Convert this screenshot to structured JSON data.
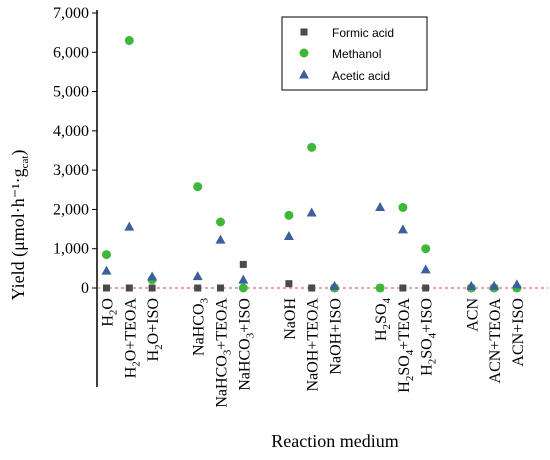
{
  "chart_data": {
    "type": "scatter",
    "ylabel": "Yield (μmol·h⁻¹·g",
    "ylabel_sub": "cat",
    "ylabel_tail": ")",
    "xlabel": "Reaction medium",
    "ylim": [
      0,
      7000
    ],
    "yticks": [
      0,
      1000,
      2000,
      3000,
      4000,
      5000,
      6000,
      7000
    ],
    "ytick_labels": [
      "0",
      "1,000",
      "2,000",
      "3,000",
      "4,000",
      "5,000",
      "6,000",
      "7,000"
    ],
    "grid": false,
    "legend_position": "top-center",
    "zero_line_color": "#e0483c",
    "categories": [
      {
        "pos": 1,
        "parts": [
          [
            "H",
            ""
          ],
          [
            "2",
            "sub"
          ],
          [
            "O",
            ""
          ]
        ]
      },
      {
        "pos": 2,
        "parts": [
          [
            "H",
            ""
          ],
          [
            "2",
            "sub"
          ],
          [
            "O+TEOA",
            ""
          ]
        ]
      },
      {
        "pos": 3,
        "parts": [
          [
            "H",
            ""
          ],
          [
            "2",
            "sub"
          ],
          [
            "O+ISO",
            ""
          ]
        ]
      },
      {
        "pos": 5,
        "parts": [
          [
            "NaHCO",
            ""
          ],
          [
            "3",
            "sub"
          ]
        ]
      },
      {
        "pos": 6,
        "parts": [
          [
            "NaHCO",
            ""
          ],
          [
            "3",
            "sub"
          ],
          [
            "+TEOA",
            ""
          ]
        ]
      },
      {
        "pos": 7,
        "parts": [
          [
            "NaHCO",
            ""
          ],
          [
            "3",
            "sub"
          ],
          [
            "+ISO",
            ""
          ]
        ]
      },
      {
        "pos": 9,
        "parts": [
          [
            "NaOH",
            ""
          ]
        ]
      },
      {
        "pos": 10,
        "parts": [
          [
            "NaOH+TEOA",
            ""
          ]
        ]
      },
      {
        "pos": 11,
        "parts": [
          [
            "NaOH+ISO",
            ""
          ]
        ]
      },
      {
        "pos": 13,
        "parts": [
          [
            "H",
            ""
          ],
          [
            "2",
            "sub"
          ],
          [
            "SO",
            ""
          ],
          [
            "4",
            "sub"
          ]
        ]
      },
      {
        "pos": 14,
        "parts": [
          [
            "H",
            ""
          ],
          [
            "2",
            "sub"
          ],
          [
            "SO",
            ""
          ],
          [
            "4",
            "sub"
          ],
          [
            "+TEOA",
            ""
          ]
        ]
      },
      {
        "pos": 15,
        "parts": [
          [
            "H",
            ""
          ],
          [
            "2",
            "sub"
          ],
          [
            "SO",
            ""
          ],
          [
            "4",
            "sub"
          ],
          [
            "+ISO",
            ""
          ]
        ]
      },
      {
        "pos": 17,
        "parts": [
          [
            "ACN",
            ""
          ]
        ]
      },
      {
        "pos": 18,
        "parts": [
          [
            "ACN+TEOA",
            ""
          ]
        ]
      },
      {
        "pos": 19,
        "parts": [
          [
            "ACN+ISO",
            ""
          ]
        ]
      }
    ],
    "series": [
      {
        "name": "Formic acid",
        "marker": "square",
        "color": "#4a4a4a",
        "values": [
          0,
          0,
          0,
          0,
          0,
          600,
          110,
          0,
          0,
          0,
          0,
          0,
          0,
          0,
          0
        ]
      },
      {
        "name": "Methanol",
        "marker": "circle",
        "color": "#3fb83a",
        "values": [
          850,
          6300,
          210,
          2580,
          1680,
          0,
          1850,
          3580,
          0,
          0,
          2050,
          1000,
          0,
          0,
          0
        ]
      },
      {
        "name": "Acetic acid",
        "marker": "triangle",
        "color": "#3d5f9e",
        "values": [
          430,
          1550,
          280,
          290,
          1220,
          200,
          1310,
          1910,
          40,
          2050,
          1480,
          460,
          40,
          40,
          80
        ]
      }
    ]
  }
}
